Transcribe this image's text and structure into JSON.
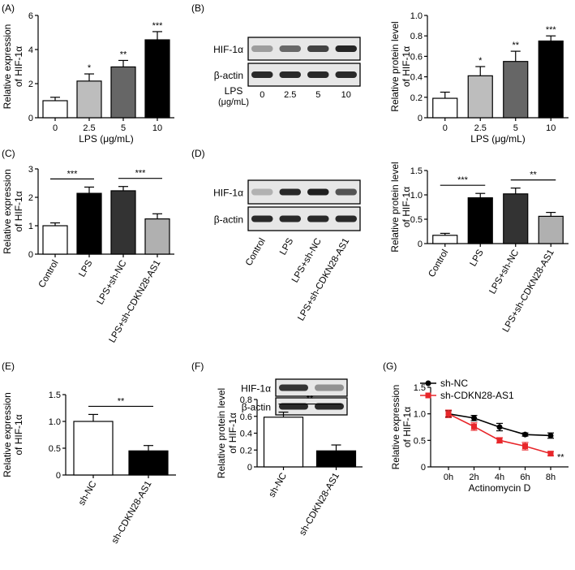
{
  "panel_labels": [
    "(A)",
    "(B)",
    "(C)",
    "(D)",
    "(E)",
    "(F)",
    "(G)"
  ],
  "chart_data": [
    {
      "id": "A",
      "type": "bar",
      "ylabel": "Relative expression of HIF-1α",
      "xlabel": "LPS (μg/mL)",
      "categories": [
        "0",
        "2.5",
        "5",
        "10"
      ],
      "values": [
        1.0,
        2.15,
        2.98,
        4.57
      ],
      "errors": [
        0.2,
        0.42,
        0.38,
        0.48
      ],
      "fills": [
        "#ffffff",
        "#bdbdbd",
        "#666666",
        "#000000"
      ],
      "sig": [
        "",
        "*",
        "**",
        "***"
      ],
      "ylim": [
        0,
        6
      ],
      "yticks": [
        0,
        2,
        4,
        6
      ],
      "rotate_labels": false
    },
    {
      "id": "B",
      "type": "bar",
      "ylabel": "Relative protein level of HIF-1α",
      "xlabel": "LPS (μg/mL)",
      "categories": [
        "0",
        "2.5",
        "5",
        "10"
      ],
      "values": [
        0.19,
        0.41,
        0.55,
        0.75
      ],
      "errors": [
        0.06,
        0.09,
        0.1,
        0.05
      ],
      "fills": [
        "#ffffff",
        "#bdbdbd",
        "#666666",
        "#000000"
      ],
      "sig": [
        "",
        "*",
        "**",
        "***"
      ],
      "ylim": [
        0,
        1.0
      ],
      "yticks": [
        0,
        0.2,
        0.4,
        0.6,
        0.8,
        1.0
      ],
      "rotate_labels": false
    },
    {
      "id": "C",
      "type": "bar",
      "ylabel": "Relative expression of HIF-1α",
      "xlabel": "",
      "categories": [
        "Control",
        "LPS",
        "LPS+sh-NC",
        "LPS+sh-CDKN28-AS1"
      ],
      "values": [
        1.0,
        2.14,
        2.23,
        1.24
      ],
      "errors": [
        0.1,
        0.22,
        0.15,
        0.18
      ],
      "fills": [
        "#ffffff",
        "#000000",
        "#333333",
        "#b0b0b0"
      ],
      "sig": [
        "",
        "",
        "",
        ""
      ],
      "brackets": [
        {
          "from": 0,
          "to": 1,
          "label": "***"
        },
        {
          "from": 2,
          "to": 3,
          "label": "***"
        }
      ],
      "ylim": [
        0,
        3
      ],
      "yticks": [
        0,
        1,
        2,
        3
      ],
      "rotate_labels": true
    },
    {
      "id": "D",
      "type": "bar",
      "ylabel": "Relative protein level of HIF-1α",
      "xlabel": "",
      "categories": [
        "Control",
        "LPS",
        "LPS+sh-NC",
        "LPS+sh-CDKN28-AS1"
      ],
      "values": [
        0.17,
        0.94,
        1.02,
        0.56
      ],
      "errors": [
        0.04,
        0.09,
        0.12,
        0.08
      ],
      "fills": [
        "#ffffff",
        "#000000",
        "#333333",
        "#b0b0b0"
      ],
      "sig": [
        "",
        "",
        "",
        ""
      ],
      "brackets": [
        {
          "from": 0,
          "to": 1,
          "label": "***"
        },
        {
          "from": 2,
          "to": 3,
          "label": "**"
        }
      ],
      "ylim": [
        0,
        1.5
      ],
      "yticks": [
        0,
        0.5,
        1.0,
        1.5
      ],
      "rotate_labels": true
    },
    {
      "id": "E",
      "type": "bar",
      "ylabel": "Relative expression of HIF-1α",
      "xlabel": "",
      "categories": [
        "sh-NC",
        "sh-CDKN28-AS1"
      ],
      "values": [
        1.0,
        0.45
      ],
      "errors": [
        0.13,
        0.1
      ],
      "fills": [
        "#ffffff",
        "#000000"
      ],
      "sig": [
        "",
        ""
      ],
      "brackets": [
        {
          "from": 0,
          "to": 1,
          "label": "**"
        }
      ],
      "ylim": [
        0,
        1.5
      ],
      "yticks": [
        0,
        0.5,
        1.0,
        1.5
      ],
      "rotate_labels": true
    },
    {
      "id": "F",
      "type": "bar",
      "ylabel": "Relative protein level of HIF-1α",
      "xlabel": "",
      "categories": [
        "sh-NC",
        "sh-CDKN28-AS1"
      ],
      "values": [
        0.59,
        0.19
      ],
      "errors": [
        0.06,
        0.07
      ],
      "fills": [
        "#ffffff",
        "#000000"
      ],
      "sig": [
        "",
        ""
      ],
      "brackets": [
        {
          "from": 0,
          "to": 1,
          "label": "**"
        }
      ],
      "ylim": [
        0,
        0.8
      ],
      "yticks": [
        0,
        0.2,
        0.4,
        0.6,
        0.8
      ],
      "rotate_labels": true
    },
    {
      "id": "G",
      "type": "line",
      "ylabel": "Relative expression of HIF-1α",
      "xlabel": "Actinomycin D",
      "x": [
        "0h",
        "2h",
        "4h",
        "6h",
        "8h"
      ],
      "series": [
        {
          "name": "sh-NC",
          "color": "#000000",
          "values": [
            1.0,
            0.92,
            0.75,
            0.61,
            0.59
          ],
          "errors": [
            0.06,
            0.05,
            0.07,
            0.03,
            0.05
          ]
        },
        {
          "name": "sh-CDKN28-AS1",
          "color": "#e8262a",
          "values": [
            1.0,
            0.76,
            0.5,
            0.39,
            0.25
          ],
          "errors": [
            0.07,
            0.07,
            0.05,
            0.07,
            0.04
          ]
        }
      ],
      "end_sig": "**",
      "ylim": [
        0,
        1.5
      ],
      "yticks": [
        0,
        0.5,
        1.0,
        1.5
      ]
    }
  ],
  "blots": {
    "B": {
      "rows": [
        "HIF-1α",
        "β-actin"
      ],
      "lanes": [
        "0",
        "2.5",
        "5",
        "10"
      ],
      "caption": [
        "LPS",
        "(μg/mL)"
      ],
      "intensity": [
        0.35,
        0.6,
        0.78,
        0.92
      ]
    },
    "D": {
      "rows": [
        "HIF-1α",
        "β-actin"
      ],
      "lanes": [
        "Control",
        "LPS",
        "LPS+sh-NC",
        "LPS+sh-CDKN28-AS1"
      ],
      "intensity": [
        0.25,
        0.9,
        0.95,
        0.7
      ]
    },
    "F": {
      "rows": [
        "HIF-1α",
        "β-actin"
      ],
      "intensity": [
        0.85,
        0.4
      ]
    }
  }
}
